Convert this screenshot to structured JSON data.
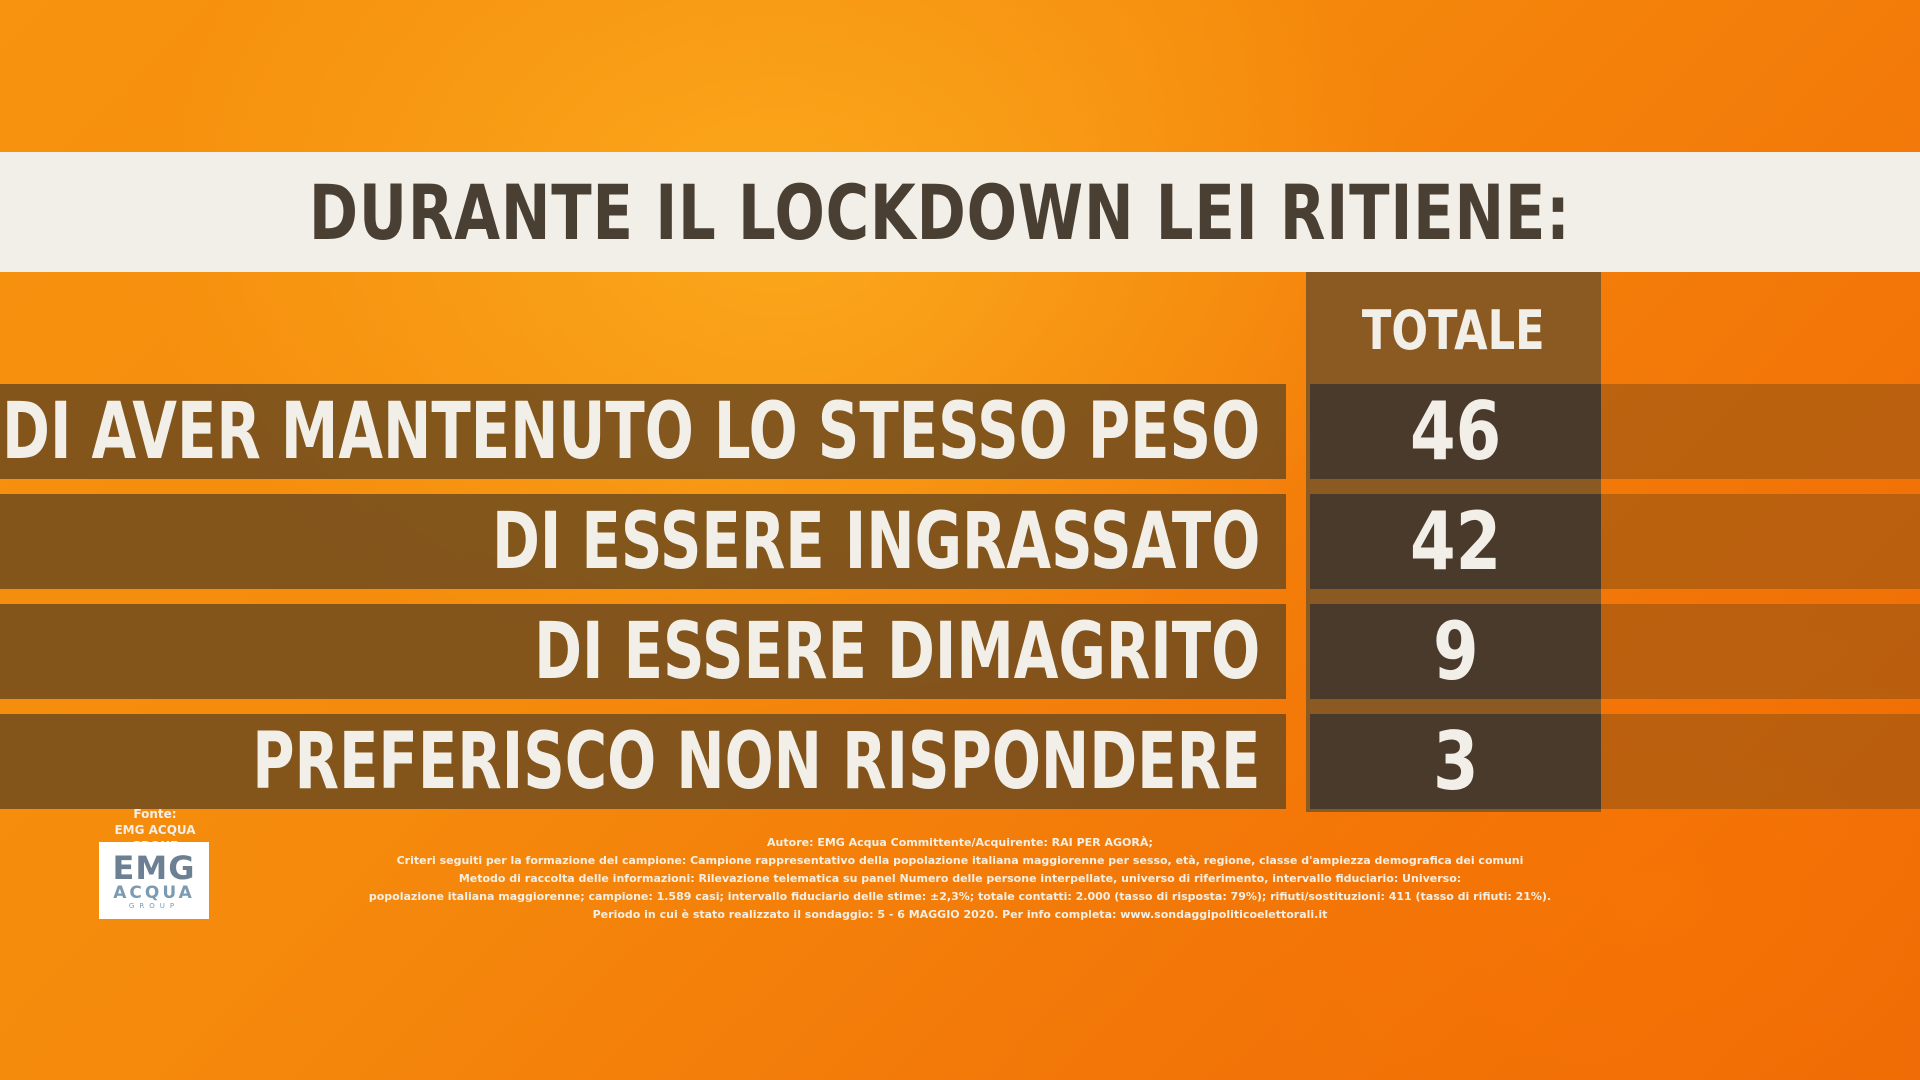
{
  "title": "DURANTE IL LOCKDOWN LEI RITIENE:",
  "chart_data": {
    "type": "table",
    "column_header": "TOTALE",
    "categories": [
      "DI AVER MANTENUTO LO STESSO PESO",
      "DI ESSERE INGRASSATO",
      "DI ESSERE DIMAGRITO",
      "PREFERISCO NON RISPONDERE"
    ],
    "values": [
      "46",
      "42",
      "9",
      "3"
    ]
  },
  "source": {
    "label": "Fonte:",
    "name": "EMG ACQUA GROUP",
    "logo": {
      "line1": "EMG",
      "line2": "ACQUA",
      "line3": "GROUP"
    }
  },
  "notes": [
    "Autore: EMG Acqua Committente/Acquirente: RAI PER AGORÀ;",
    "Criteri seguiti per la formazione del campione: Campione rappresentativo della popolazione italiana maggiorenne per sesso, età, regione, classe d'ampiezza demografica dei comuni",
    "Metodo di raccolta delle informazioni: Rilevazione telematica su panel Numero delle persone interpellate, universo di riferimento, intervallo fiduciario: Universo:",
    "popolazione italiana maggiorenne; campione: 1.589 casi; intervallo fiduciario delle stime: ±2,3%; totale contatti: 2.000 (tasso di risposta: 79%); rifiuti/sostituzioni: 411 (tasso di rifiuti: 21%).",
    "Periodo in cui è stato realizzato il sondaggio: 5 - 6 MAGGIO 2020. Per info completa: www.sondaggipoliticoelettorali.it"
  ]
}
